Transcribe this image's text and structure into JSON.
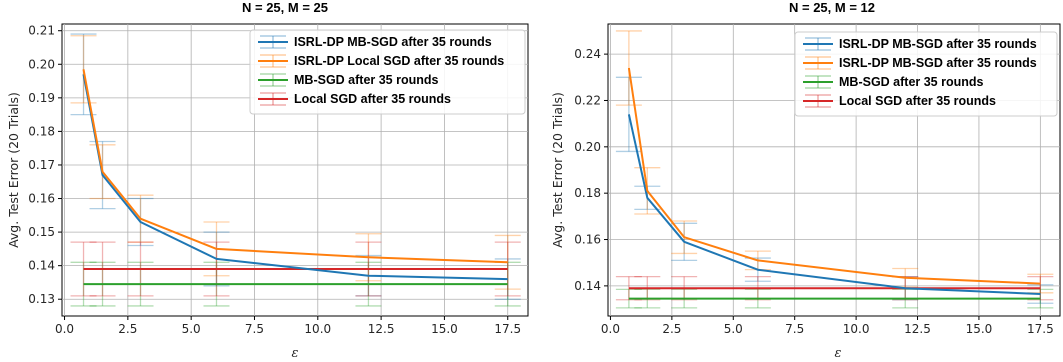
{
  "chart_data": [
    {
      "type": "line",
      "title": "N = 25, M = 25",
      "xlabel": "ε",
      "ylabel": "Avg. Test Error (20 Trials)",
      "xlim": [
        -0.1,
        18.3
      ],
      "ylim": [
        0.125,
        0.212
      ],
      "xticks": [
        0.0,
        2.5,
        5.0,
        7.5,
        10.0,
        12.5,
        15.0,
        17.5
      ],
      "xtick_labels": [
        "0.0",
        "2.5",
        "5.0",
        "7.5",
        "10.0",
        "12.5",
        "15.0",
        "17.5"
      ],
      "yticks": [
        0.13,
        0.14,
        0.15,
        0.16,
        0.17,
        0.18,
        0.19,
        0.2,
        0.21
      ],
      "ytick_labels": [
        "0.13",
        "0.14",
        "0.15",
        "0.16",
        "0.17",
        "0.18",
        "0.19",
        "0.20",
        "0.21"
      ],
      "grid": true,
      "legend_position": "top-right",
      "x": [
        0.75,
        1.5,
        3,
        6,
        12,
        17.5
      ],
      "series": [
        {
          "name": "ISRL-DP MB-SGD after 35 rounds",
          "color": "#1f77b4",
          "values": [
            0.197,
            0.167,
            0.153,
            0.142,
            0.137,
            0.136
          ],
          "err": [
            0.012,
            0.01,
            0.007,
            0.008,
            0.006,
            0.006
          ]
        },
        {
          "name": "ISRL-DP Local SGD after 35 rounds",
          "color": "#ff7f0e",
          "values": [
            0.1985,
            0.168,
            0.154,
            0.145,
            0.1425,
            0.141
          ],
          "err": [
            0.01,
            0.008,
            0.007,
            0.008,
            0.007,
            0.008
          ]
        },
        {
          "name": "MB-SGD after 35 rounds",
          "color": "#2ca02c",
          "values": [
            0.1345,
            0.1345,
            0.1345,
            0.1345,
            0.1345,
            0.1345
          ],
          "err": [
            0.0065,
            0.0065,
            0.0065,
            0.0065,
            0.0065,
            0.0065
          ]
        },
        {
          "name": "Local SGD after 35 rounds",
          "color": "#d62728",
          "values": [
            0.139,
            0.139,
            0.139,
            0.139,
            0.139,
            0.139
          ],
          "err": [
            0.008,
            0.008,
            0.008,
            0.008,
            0.008,
            0.008
          ]
        }
      ]
    },
    {
      "type": "line",
      "title": "N = 25, M = 12",
      "xlabel": "ε",
      "ylabel": "Avg. Test Error (20 Trials)",
      "xlim": [
        -0.1,
        18.3
      ],
      "ylim": [
        0.127,
        0.253
      ],
      "xticks": [
        0.0,
        2.5,
        5.0,
        7.5,
        10.0,
        12.5,
        15.0,
        17.5
      ],
      "xtick_labels": [
        "0.0",
        "2.5",
        "5.0",
        "7.5",
        "10.0",
        "12.5",
        "15.0",
        "17.5"
      ],
      "yticks": [
        0.14,
        0.16,
        0.18,
        0.2,
        0.22,
        0.24
      ],
      "ytick_labels": [
        "0.14",
        "0.16",
        "0.18",
        "0.20",
        "0.22",
        "0.24"
      ],
      "grid": true,
      "legend_position": "top-right",
      "x": [
        0.75,
        1.5,
        3,
        6,
        12,
        17.5
      ],
      "series": [
        {
          "name": "ISRL-DP MB-SGD after 35 rounds",
          "color": "#1f77b4",
          "values": [
            0.214,
            0.178,
            0.159,
            0.147,
            0.139,
            0.1365
          ],
          "err": [
            0.016,
            0.005,
            0.008,
            0.005,
            0.005,
            0.004
          ]
        },
        {
          "name": "ISRL-DP MB-SGD after 35 rounds",
          "color": "#ff7f0e",
          "values": [
            0.234,
            0.181,
            0.161,
            0.151,
            0.1435,
            0.141
          ],
          "err": [
            0.016,
            0.01,
            0.007,
            0.004,
            0.004,
            0.004
          ]
        },
        {
          "name": "MB-SGD after 35 rounds",
          "color": "#2ca02c",
          "values": [
            0.1345,
            0.1345,
            0.1345,
            0.1345,
            0.1345,
            0.1345
          ],
          "err": [
            0.004,
            0.004,
            0.004,
            0.004,
            0.004,
            0.004
          ]
        },
        {
          "name": "Local SGD after 35 rounds",
          "color": "#d62728",
          "values": [
            0.139,
            0.139,
            0.139,
            0.139,
            0.139,
            0.139
          ],
          "err": [
            0.005,
            0.005,
            0.005,
            0.005,
            0.005,
            0.005
          ]
        }
      ]
    }
  ]
}
